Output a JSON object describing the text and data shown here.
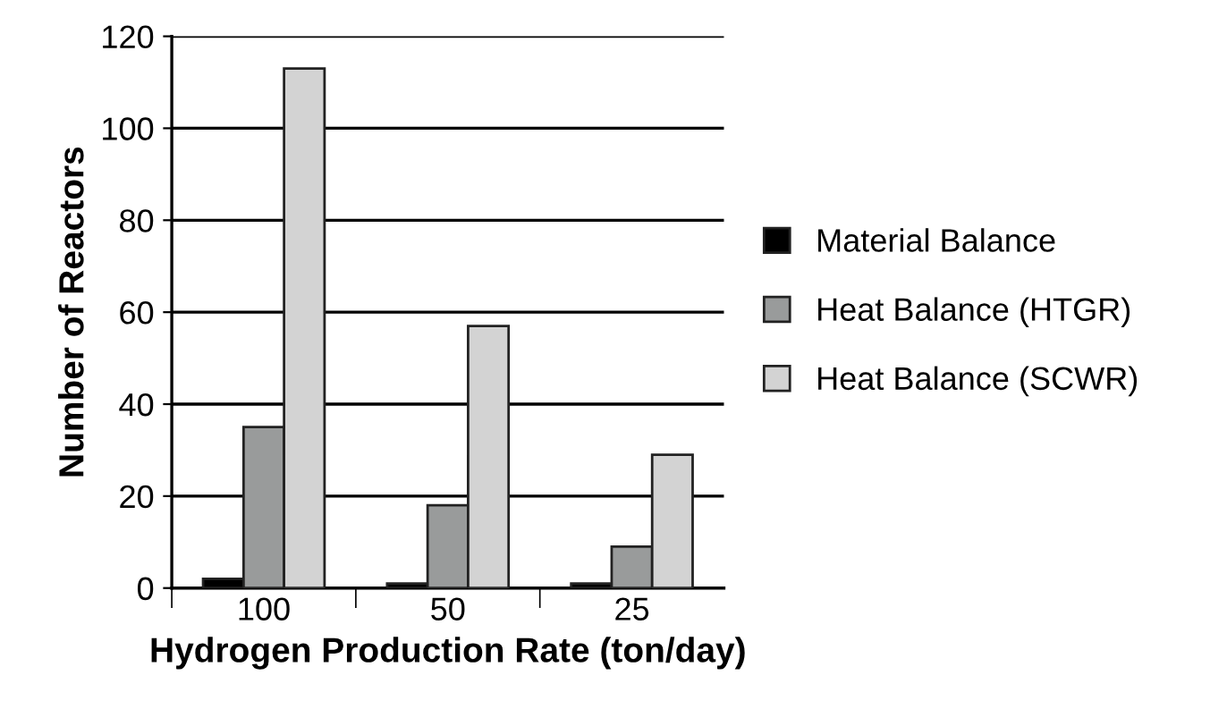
{
  "chart_data": {
    "type": "bar",
    "xlabel": "Hydrogen Production Rate (ton/day)",
    "ylabel": "Number of Reactors",
    "categories": [
      "100",
      "50",
      "25"
    ],
    "series": [
      {
        "name": "Material Balance",
        "color": "#000000",
        "values": [
          2,
          1,
          1
        ]
      },
      {
        "name": "Heat Balance (HTGR)",
        "color": "#999b9b",
        "values": [
          35,
          18,
          9
        ]
      },
      {
        "name": "Heat Balance (SCWR)",
        "color": "#d3d3d3",
        "values": [
          113,
          57,
          29
        ]
      }
    ],
    "ylim": [
      0,
      120
    ],
    "yticks": [
      0,
      20,
      40,
      60,
      80,
      100,
      120
    ],
    "grid": "y",
    "legend": "right"
  }
}
